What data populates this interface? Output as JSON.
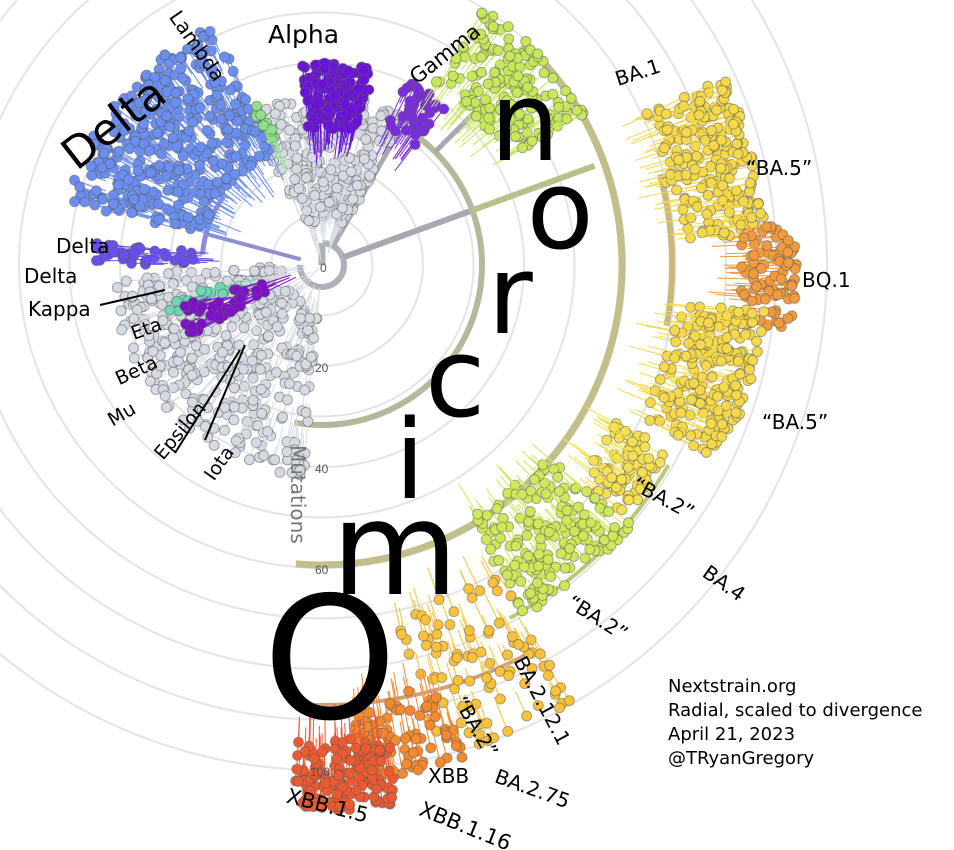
{
  "axis": {
    "title": "Mutations",
    "ticks": [
      "0",
      "20",
      "40",
      "60",
      "100"
    ],
    "max": 100,
    "ring_step": 10
  },
  "omicron_title": "Omicron",
  "clade_labels": {
    "delta_big": "Delta",
    "lambda": "Lambda",
    "alpha": "Alpha",
    "gamma": "Gamma",
    "delta1": "Delta",
    "delta2": "Delta",
    "kappa": "Kappa",
    "eta": "Eta",
    "beta": "Beta",
    "mu": "Mu",
    "epsilon": "Epsilon",
    "iota": "Iota",
    "ba1": "BA.1",
    "ba5a": "“BA.5”",
    "bq1": "BQ.1",
    "ba5b": "“BA.5”",
    "ba2a": "“BA.2”",
    "ba4": "BA.4",
    "ba2b": "“BA.2”",
    "ba2121": "BA.2.12.1",
    "ba2c": "“BA.2”",
    "ba275": "BA.2.75",
    "xbb": "XBB",
    "xbb15": "XBB.1.5",
    "xbb116": "XBB.1.16"
  },
  "credit": [
    "Nextstrain.org",
    "Radial, scaled to divergence",
    "April 21, 2023",
    "@TRyanGregory"
  ],
  "colors": {
    "gray": "#d6dbe3",
    "delta": "#6b8ff0",
    "delta_purple": "#6a4ff0",
    "alpha": "#6a12d9",
    "gamma": "#7a2be0",
    "lambda": "#90e08a",
    "eta": "#6fd6b6",
    "beta": "#7d10c8",
    "ba1": "#c6e85a",
    "ba5": "#f5d94a",
    "bq1": "#f29a3c",
    "ba2": "#f5e050",
    "ba2g": "#cfe85a",
    "ba275": "#f9c23a",
    "xbb": "#f5892e",
    "xbb15": "#ee5a30",
    "ring": "#e4e4e4"
  }
}
